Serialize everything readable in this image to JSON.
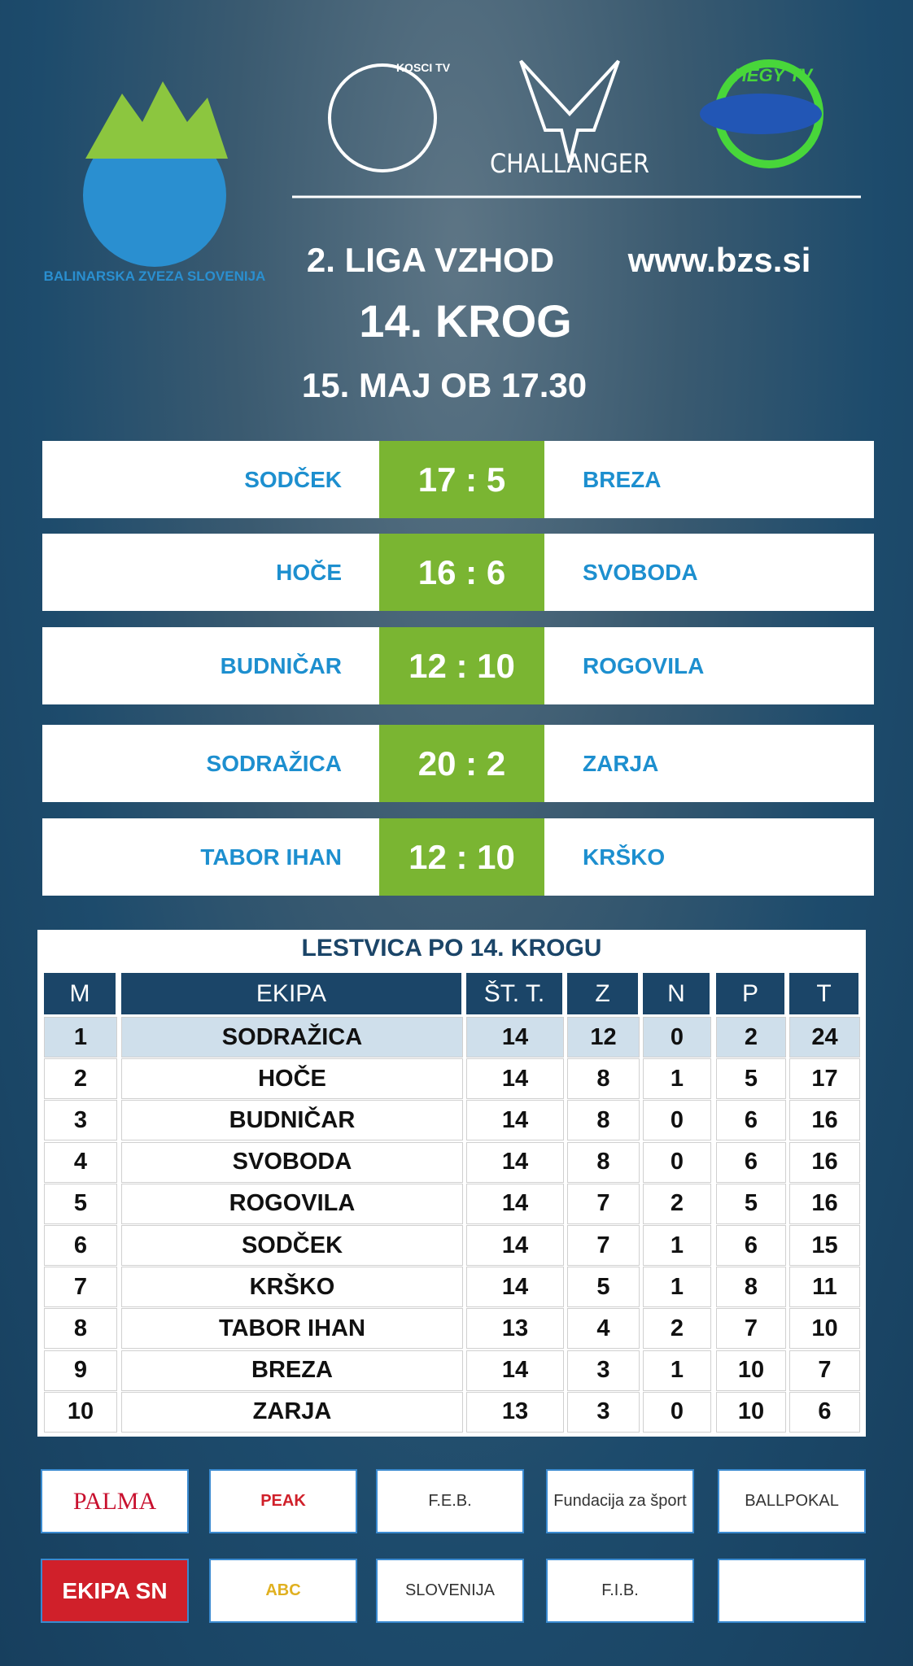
{
  "header": {
    "logos": [
      "BALINARSKA ZVEZA SLOVENIJA",
      "KOSCI TV",
      "CHALLANGER",
      "HEGY TV"
    ],
    "league": "2. LIGA VZHOD",
    "website": "www.bzs.si",
    "round": "14. KROG",
    "date": "15. MAJ OB 17.30"
  },
  "matches": [
    {
      "home": "SODČEK",
      "score": "17 : 5",
      "away": "BREZA"
    },
    {
      "home": "HOČE",
      "score": "16 : 6",
      "away": "SVOBODA"
    },
    {
      "home": "BUDNIČAR",
      "score": "12 : 10",
      "away": "ROGOVILA"
    },
    {
      "home": "SODRAŽICA",
      "score": "20 : 2",
      "away": "ZARJA"
    },
    {
      "home": "TABOR IHAN",
      "score": "12 : 10",
      "away": "KRŠKO"
    }
  ],
  "standings": {
    "title": "LESTVICA PO 14. KROGU",
    "columns": [
      "M",
      "EKIPA",
      "ŠT. T.",
      "Z",
      "N",
      "P",
      "T"
    ],
    "rows": [
      [
        1,
        "SODRAŽICA",
        14,
        12,
        0,
        2,
        24
      ],
      [
        2,
        "HOČE",
        14,
        8,
        1,
        5,
        17
      ],
      [
        3,
        "BUDNIČAR",
        14,
        8,
        0,
        6,
        16
      ],
      [
        4,
        "SVOBODA",
        14,
        8,
        0,
        6,
        16
      ],
      [
        5,
        "ROGOVILA",
        14,
        7,
        2,
        5,
        16
      ],
      [
        6,
        "SODČEK",
        14,
        7,
        1,
        6,
        15
      ],
      [
        7,
        "KRŠKO",
        14,
        5,
        1,
        8,
        11
      ],
      [
        8,
        "TABOR IHAN",
        13,
        4,
        2,
        7,
        10
      ],
      [
        9,
        "BREZA",
        14,
        3,
        1,
        10,
        7
      ],
      [
        10,
        "ZARJA",
        13,
        3,
        0,
        10,
        6
      ]
    ]
  },
  "sponsors": [
    "PALMA",
    "PEAK",
    "F.E.B.",
    "Fundacija za šport",
    "BALLPOKAL",
    "EKIPA SN",
    "ABC",
    "SLOVENIJA",
    "F.I.B.",
    null
  ]
}
